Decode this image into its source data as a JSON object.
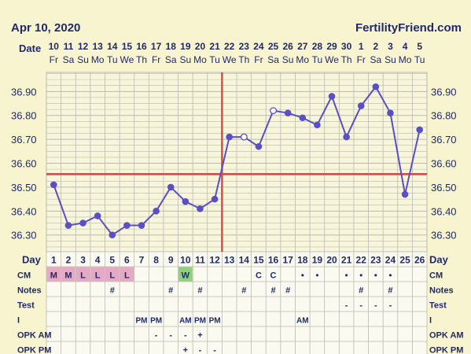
{
  "header": {
    "date_title": "Apr 10, 2020",
    "brand": "FertilityFriend.com",
    "date_row_label": "Date"
  },
  "colors": {
    "background": "#f7f4cf",
    "grid": "#b9b9b3",
    "navy": "#1f2a6b",
    "series": "#5a4fc4",
    "coverline": "#d2504b",
    "cm_pink": "#e6a9c4",
    "cm_green": "#8fd07a"
  },
  "chart_data": {
    "type": "line",
    "dates": [
      "10",
      "11",
      "12",
      "13",
      "14",
      "15",
      "16",
      "17",
      "18",
      "19",
      "20",
      "21",
      "22",
      "23",
      "24",
      "25",
      "26",
      "27",
      "28",
      "29",
      "30",
      "1",
      "2",
      "3",
      "4",
      "5"
    ],
    "weekdays": [
      "Fr",
      "Sa",
      "Su",
      "Mo",
      "Tu",
      "We",
      "Th",
      "Fr",
      "Sa",
      "Su",
      "Mo",
      "Tu",
      "We",
      "Th",
      "Fr",
      "Sa",
      "Su",
      "Mo",
      "Tu",
      "We",
      "Th",
      "Fr",
      "Sa",
      "Su",
      "Mo",
      "Tu"
    ],
    "days": [
      "1",
      "2",
      "3",
      "4",
      "5",
      "6",
      "7",
      "8",
      "9",
      "10",
      "11",
      "12",
      "13",
      "14",
      "15",
      "16",
      "17",
      "18",
      "19",
      "20",
      "21",
      "22",
      "23",
      "24",
      "25",
      "26"
    ],
    "temperatures": [
      36.51,
      36.34,
      36.35,
      36.38,
      36.3,
      36.34,
      36.34,
      36.4,
      36.5,
      36.44,
      36.41,
      36.45,
      36.71,
      36.71,
      36.67,
      36.82,
      36.81,
      36.79,
      36.76,
      36.88,
      36.71,
      36.84,
      36.92,
      36.81,
      36.47,
      36.74
    ],
    "open_points": [
      14,
      16
    ],
    "y_ticks": [
      "36.90",
      "36.80",
      "36.70",
      "36.60",
      "36.50",
      "36.40",
      "36.30"
    ],
    "ylim": [
      36.23,
      36.98
    ],
    "coverline": 36.555,
    "ovulation_day": 12,
    "grid": true
  },
  "rows": [
    {
      "label": "Day"
    },
    {
      "label": "CM",
      "cells": {
        "1": "M",
        "2": "M",
        "3": "L",
        "4": "L",
        "5": "L",
        "6": "L",
        "10": "W",
        "15": "C",
        "16": "C",
        "18": "•",
        "19": "•",
        "21": "•",
        "22": "•",
        "23": "•",
        "24": "•"
      }
    },
    {
      "label": "Notes",
      "cells": {
        "5": "#",
        "9": "#",
        "11": "#",
        "14": "#",
        "16": "#",
        "17": "#",
        "22": "#",
        "24": "#"
      }
    },
    {
      "label": "Test",
      "cells": {
        "21": "-",
        "22": "-",
        "23": "-",
        "24": "-"
      }
    },
    {
      "label": "I",
      "cells": {
        "7": "PM",
        "8": "PM",
        "10": "AM",
        "11": "PM",
        "12": "PM",
        "18": "AM"
      }
    },
    {
      "label": "OPK AM",
      "cells": {
        "8": "-",
        "9": "-",
        "10": "-",
        "11": "+"
      }
    },
    {
      "label": "OPK PM",
      "cells": {
        "10": "+",
        "11": "-",
        "12": "-"
      }
    }
  ]
}
